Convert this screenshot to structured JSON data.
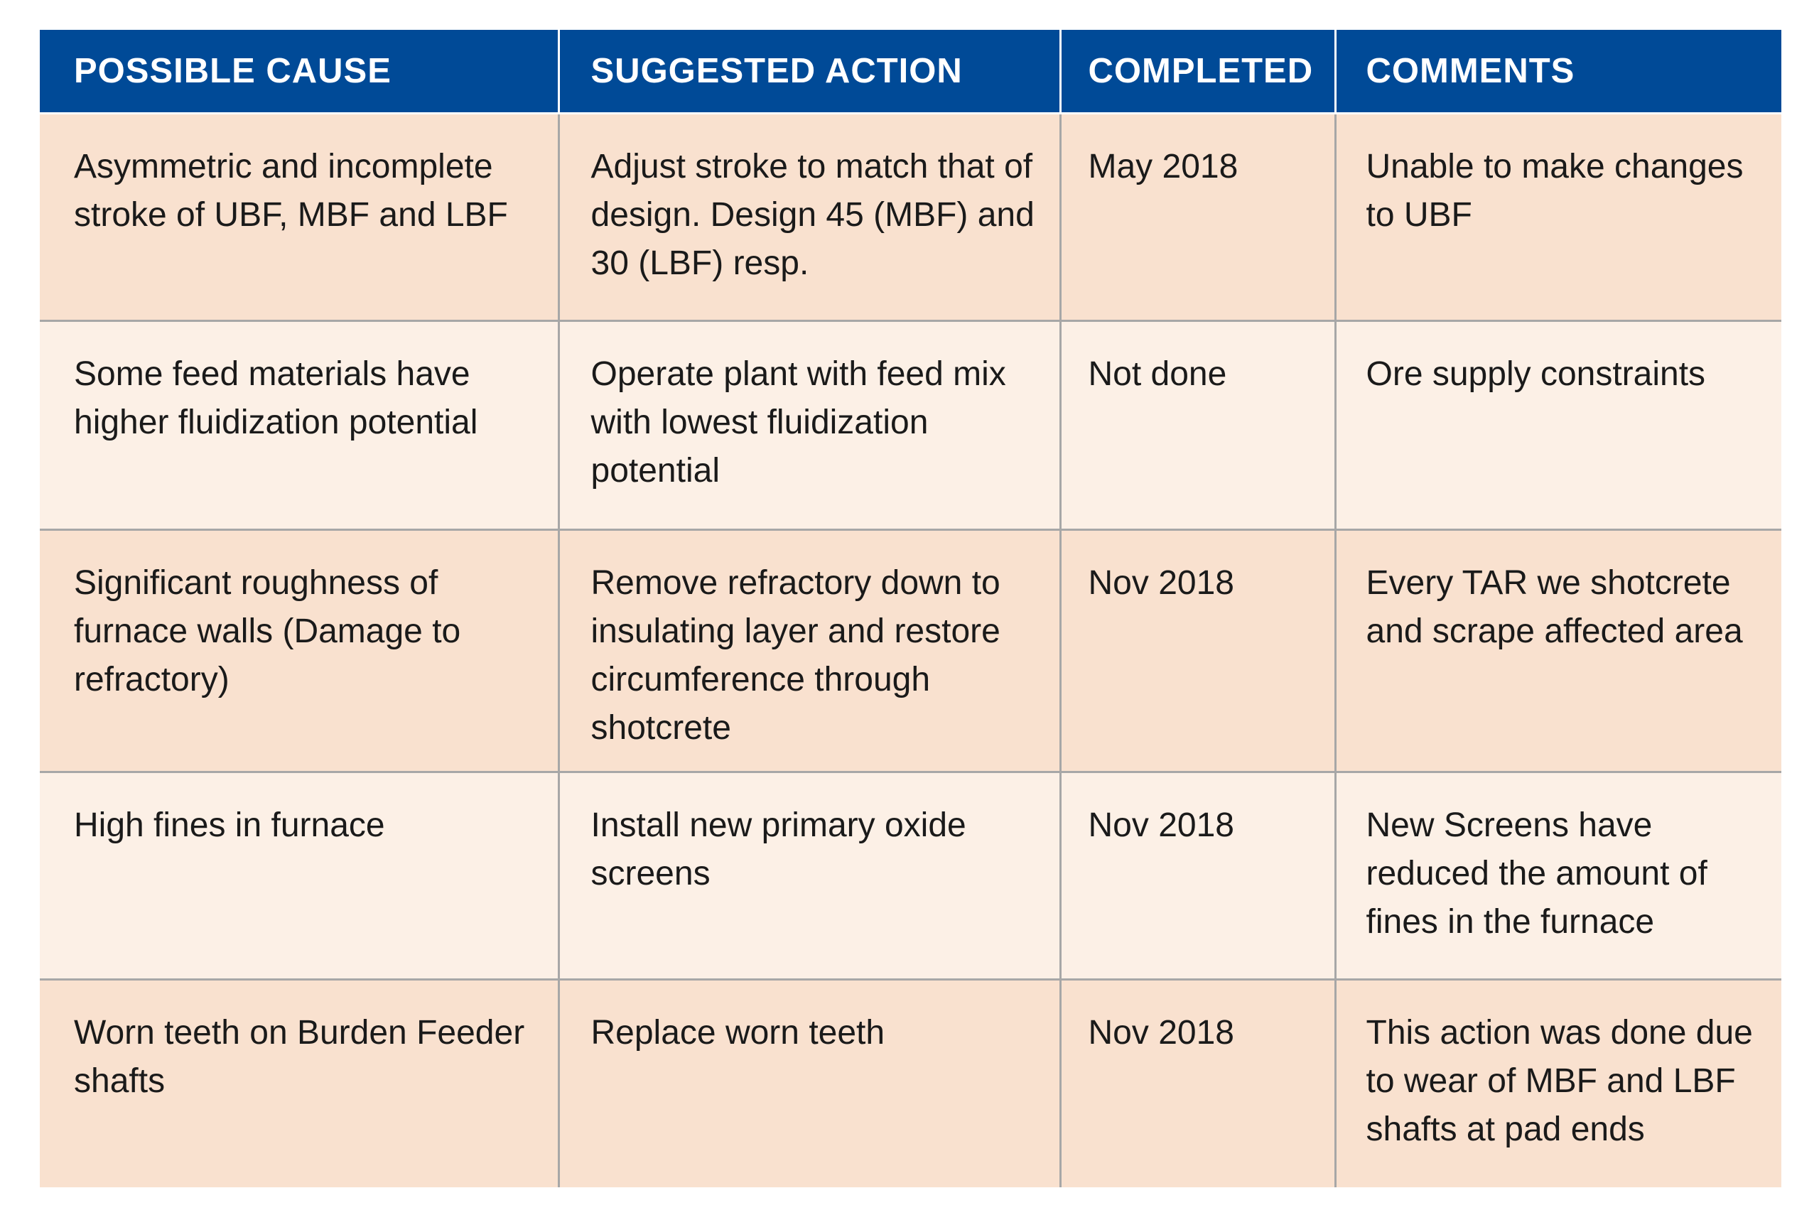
{
  "table": {
    "headers": [
      "POSSIBLE CAUSE",
      "SUGGESTED ACTION",
      "COMPLETED",
      "COMMENTS"
    ],
    "rows": [
      {
        "cause": "Asymmetric and incomplete stroke of UBF, MBF and LBF",
        "action": "Adjust stroke to match that of design. Design 45 (MBF) and 30 (LBF) resp.",
        "completed": "May 2018",
        "comments": "Unable to make changes to UBF"
      },
      {
        "cause": "Some feed materials have higher fluidization potential",
        "action": "Operate plant with feed mix with lowest fluidization potential",
        "completed": "Not done",
        "comments": "Ore supply constraints"
      },
      {
        "cause": "Significant roughness of furnace walls (Damage to refractory)",
        "action": "Remove refractory down to insulating layer and restore circumference through shotcrete",
        "completed": "Nov 2018",
        "comments": "Every TAR we shotcrete and scrape affected area"
      },
      {
        "cause": "High fines in furnace",
        "action": "Install new primary oxide screens",
        "completed": "Nov 2018",
        "comments": "New Screens have reduced the amount of fines in the furnace"
      },
      {
        "cause": "Worn teeth on Burden Feeder shafts",
        "action": "Replace worn teeth",
        "completed": "Nov 2018",
        "comments": "This action was done due to wear of MBF and LBF shafts at pad ends"
      }
    ],
    "colors": {
      "header_bg": "#004a97",
      "header_text": "#ffffff",
      "row_odd_bg": "#f9e1cf",
      "row_even_bg": "#fcf0e6",
      "grid_line": "#a7a7a7"
    }
  }
}
